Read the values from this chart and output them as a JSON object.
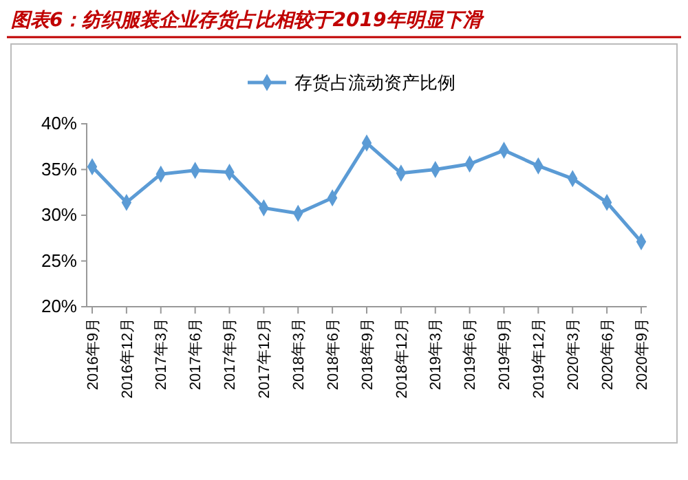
{
  "chart_data": {
    "type": "line",
    "title": "图表6：纺织服装企业存货占比相较于2019年明显下滑",
    "categories": [
      "2016年9月",
      "2016年12月",
      "2017年3月",
      "2017年6月",
      "2017年9月",
      "2017年12月",
      "2018年3月",
      "2018年6月",
      "2018年9月",
      "2018年12月",
      "2019年3月",
      "2019年6月",
      "2019年9月",
      "2019年12月",
      "2020年3月",
      "2020年6月",
      "2020年9月"
    ],
    "series": [
      {
        "name": "存货占流动资产比例",
        "color": "#5b9bd5",
        "values": [
          35.3,
          31.4,
          34.5,
          34.9,
          34.7,
          30.8,
          30.2,
          31.9,
          37.9,
          34.6,
          35.0,
          35.6,
          37.1,
          35.4,
          34.0,
          31.4,
          27.1
        ]
      }
    ],
    "ylim": [
      20,
      40
    ],
    "yticks": [
      {
        "value": 20,
        "label": "20%"
      },
      {
        "value": 25,
        "label": "25%"
      },
      {
        "value": 30,
        "label": "30%"
      },
      {
        "value": 35,
        "label": "35%"
      },
      {
        "value": 40,
        "label": "40%"
      }
    ],
    "grid": false,
    "legend": "top",
    "marker": "diamond",
    "line_style": "solid"
  }
}
